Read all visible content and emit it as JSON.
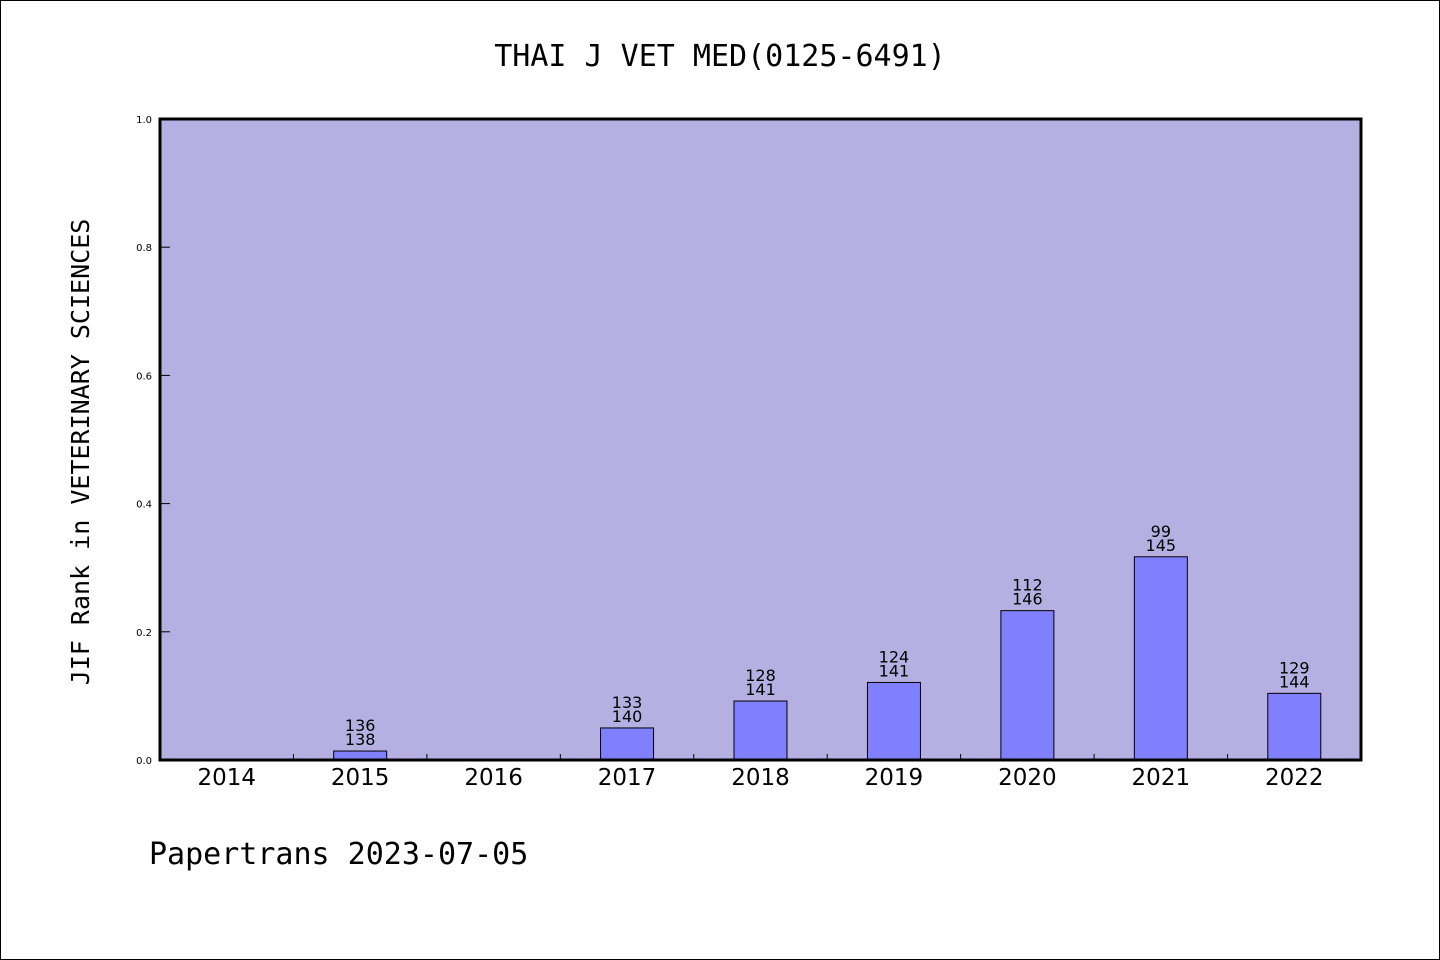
{
  "chart_data": {
    "type": "bar",
    "title": "THAI J VET MED(0125-6491)",
    "xlabel": "",
    "ylabel": "JIF Rank in VETERINARY SCIENCES",
    "ylim": [
      0,
      1.0
    ],
    "yticks": [
      "0.0",
      "0.2",
      "0.4",
      "0.6",
      "0.8",
      "1.0"
    ],
    "categories": [
      "2014",
      "2015",
      "2016",
      "2017",
      "2018",
      "2019",
      "2020",
      "2021",
      "2022"
    ],
    "values": [
      null,
      0.014,
      null,
      0.05,
      0.092,
      0.121,
      0.233,
      0.317,
      0.104
    ],
    "bar_labels": [
      null,
      [
        "136",
        "138"
      ],
      null,
      [
        "133",
        "140"
      ],
      [
        "128",
        "141"
      ],
      [
        "124",
        "141"
      ],
      [
        "112",
        "146"
      ],
      [
        "99",
        "145"
      ],
      [
        "129",
        "144"
      ]
    ],
    "grid": false,
    "legend": "none",
    "colors": {
      "plot_background": "#b6b0e2",
      "bar_fill": "#8080ff",
      "bar_stroke": "#000000"
    }
  },
  "footer": "Papertrans 2023-07-05"
}
